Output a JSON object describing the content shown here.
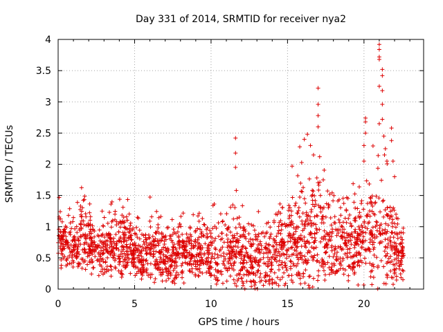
{
  "chart_data": {
    "type": "scatter",
    "title": "Day 331 of 2014, SRMTID for receiver nya2",
    "xlabel": "GPS time / hours",
    "ylabel": "SRMTID / TECUs",
    "xlim": [
      0,
      23.9
    ],
    "ylim": [
      0,
      4
    ],
    "x_ticks": [
      0,
      5,
      10,
      15,
      20
    ],
    "y_ticks": [
      0,
      0.5,
      1,
      1.5,
      2,
      2.5,
      3,
      3.5,
      4
    ],
    "x_tick_labels": [
      "0",
      "5",
      "10",
      "15",
      "20"
    ],
    "y_tick_labels": [
      "0",
      "0.5",
      "1",
      "1.5",
      "2",
      "2.5",
      "3",
      "3.5",
      "4"
    ],
    "grid": true,
    "marker": "+",
    "colors": {
      "points": "#dd0000",
      "axis": "#000000",
      "grid": "#a0a0a0",
      "background": "#ffffff"
    },
    "density_profile": [
      {
        "x": 0.0,
        "low": 0.35,
        "high": 1.6
      },
      {
        "x": 1.0,
        "low": 0.35,
        "high": 1.2
      },
      {
        "x": 1.5,
        "low": 0.3,
        "high": 1.7
      },
      {
        "x": 2.5,
        "low": 0.25,
        "high": 1.2
      },
      {
        "x": 3.5,
        "low": 0.3,
        "high": 1.4
      },
      {
        "x": 4.5,
        "low": 0.25,
        "high": 1.5
      },
      {
        "x": 5.5,
        "low": 0.15,
        "high": 1.1
      },
      {
        "x": 6.0,
        "low": 0.2,
        "high": 1.65
      },
      {
        "x": 7.0,
        "low": 0.1,
        "high": 1.1
      },
      {
        "x": 8.0,
        "low": 0.2,
        "high": 1.3
      },
      {
        "x": 9.0,
        "low": 0.2,
        "high": 1.2
      },
      {
        "x": 10.0,
        "low": 0.15,
        "high": 1.4
      },
      {
        "x": 11.0,
        "low": 0.1,
        "high": 1.4
      },
      {
        "x": 12.0,
        "low": 0.05,
        "high": 1.45
      },
      {
        "x": 13.0,
        "low": 0.0,
        "high": 1.3
      },
      {
        "x": 14.0,
        "low": 0.1,
        "high": 1.5
      },
      {
        "x": 15.0,
        "low": 0.1,
        "high": 1.9
      },
      {
        "x": 16.0,
        "low": 0.1,
        "high": 2.1
      },
      {
        "x": 17.0,
        "low": 0.15,
        "high": 2.2
      },
      {
        "x": 18.0,
        "low": 0.2,
        "high": 1.5
      },
      {
        "x": 19.0,
        "low": 0.15,
        "high": 1.6
      },
      {
        "x": 20.0,
        "low": 0.2,
        "high": 2.0
      },
      {
        "x": 21.0,
        "low": 0.05,
        "high": 2.5
      },
      {
        "x": 22.0,
        "low": 0.1,
        "high": 1.6
      },
      {
        "x": 22.6,
        "low": 0.15,
        "high": 1.3
      }
    ],
    "outliers": [
      {
        "x": 11.6,
        "y": 2.42
      },
      {
        "x": 11.6,
        "y": 2.18
      },
      {
        "x": 11.6,
        "y": 1.95
      },
      {
        "x": 11.65,
        "y": 1.58
      },
      {
        "x": 15.3,
        "y": 1.97
      },
      {
        "x": 15.8,
        "y": 2.28
      },
      {
        "x": 16.1,
        "y": 2.4
      },
      {
        "x": 16.3,
        "y": 2.48
      },
      {
        "x": 16.5,
        "y": 2.3
      },
      {
        "x": 16.7,
        "y": 2.15
      },
      {
        "x": 17.0,
        "y": 3.22
      },
      {
        "x": 17.0,
        "y": 2.96
      },
      {
        "x": 17.0,
        "y": 2.78
      },
      {
        "x": 17.0,
        "y": 2.6
      },
      {
        "x": 17.1,
        "y": 2.12
      },
      {
        "x": 20.1,
        "y": 2.74
      },
      {
        "x": 20.1,
        "y": 2.68
      },
      {
        "x": 20.1,
        "y": 2.5
      },
      {
        "x": 20.0,
        "y": 2.3
      },
      {
        "x": 20.0,
        "y": 2.05
      },
      {
        "x": 21.0,
        "y": 3.92
      },
      {
        "x": 21.0,
        "y": 3.84
      },
      {
        "x": 21.0,
        "y": 3.72
      },
      {
        "x": 21.0,
        "y": 3.68
      },
      {
        "x": 21.0,
        "y": 3.25
      },
      {
        "x": 21.0,
        "y": 2.65
      },
      {
        "x": 21.2,
        "y": 3.52
      },
      {
        "x": 21.2,
        "y": 3.42
      },
      {
        "x": 21.2,
        "y": 3.18
      },
      {
        "x": 21.2,
        "y": 2.96
      },
      {
        "x": 21.2,
        "y": 2.72
      },
      {
        "x": 21.3,
        "y": 2.45
      },
      {
        "x": 21.4,
        "y": 2.25
      },
      {
        "x": 21.5,
        "y": 2.05
      },
      {
        "x": 21.8,
        "y": 2.58
      },
      {
        "x": 21.8,
        "y": 2.38
      },
      {
        "x": 21.9,
        "y": 2.05
      },
      {
        "x": 22.0,
        "y": 1.8
      }
    ],
    "point_count": 2200,
    "random_seed": 331
  }
}
